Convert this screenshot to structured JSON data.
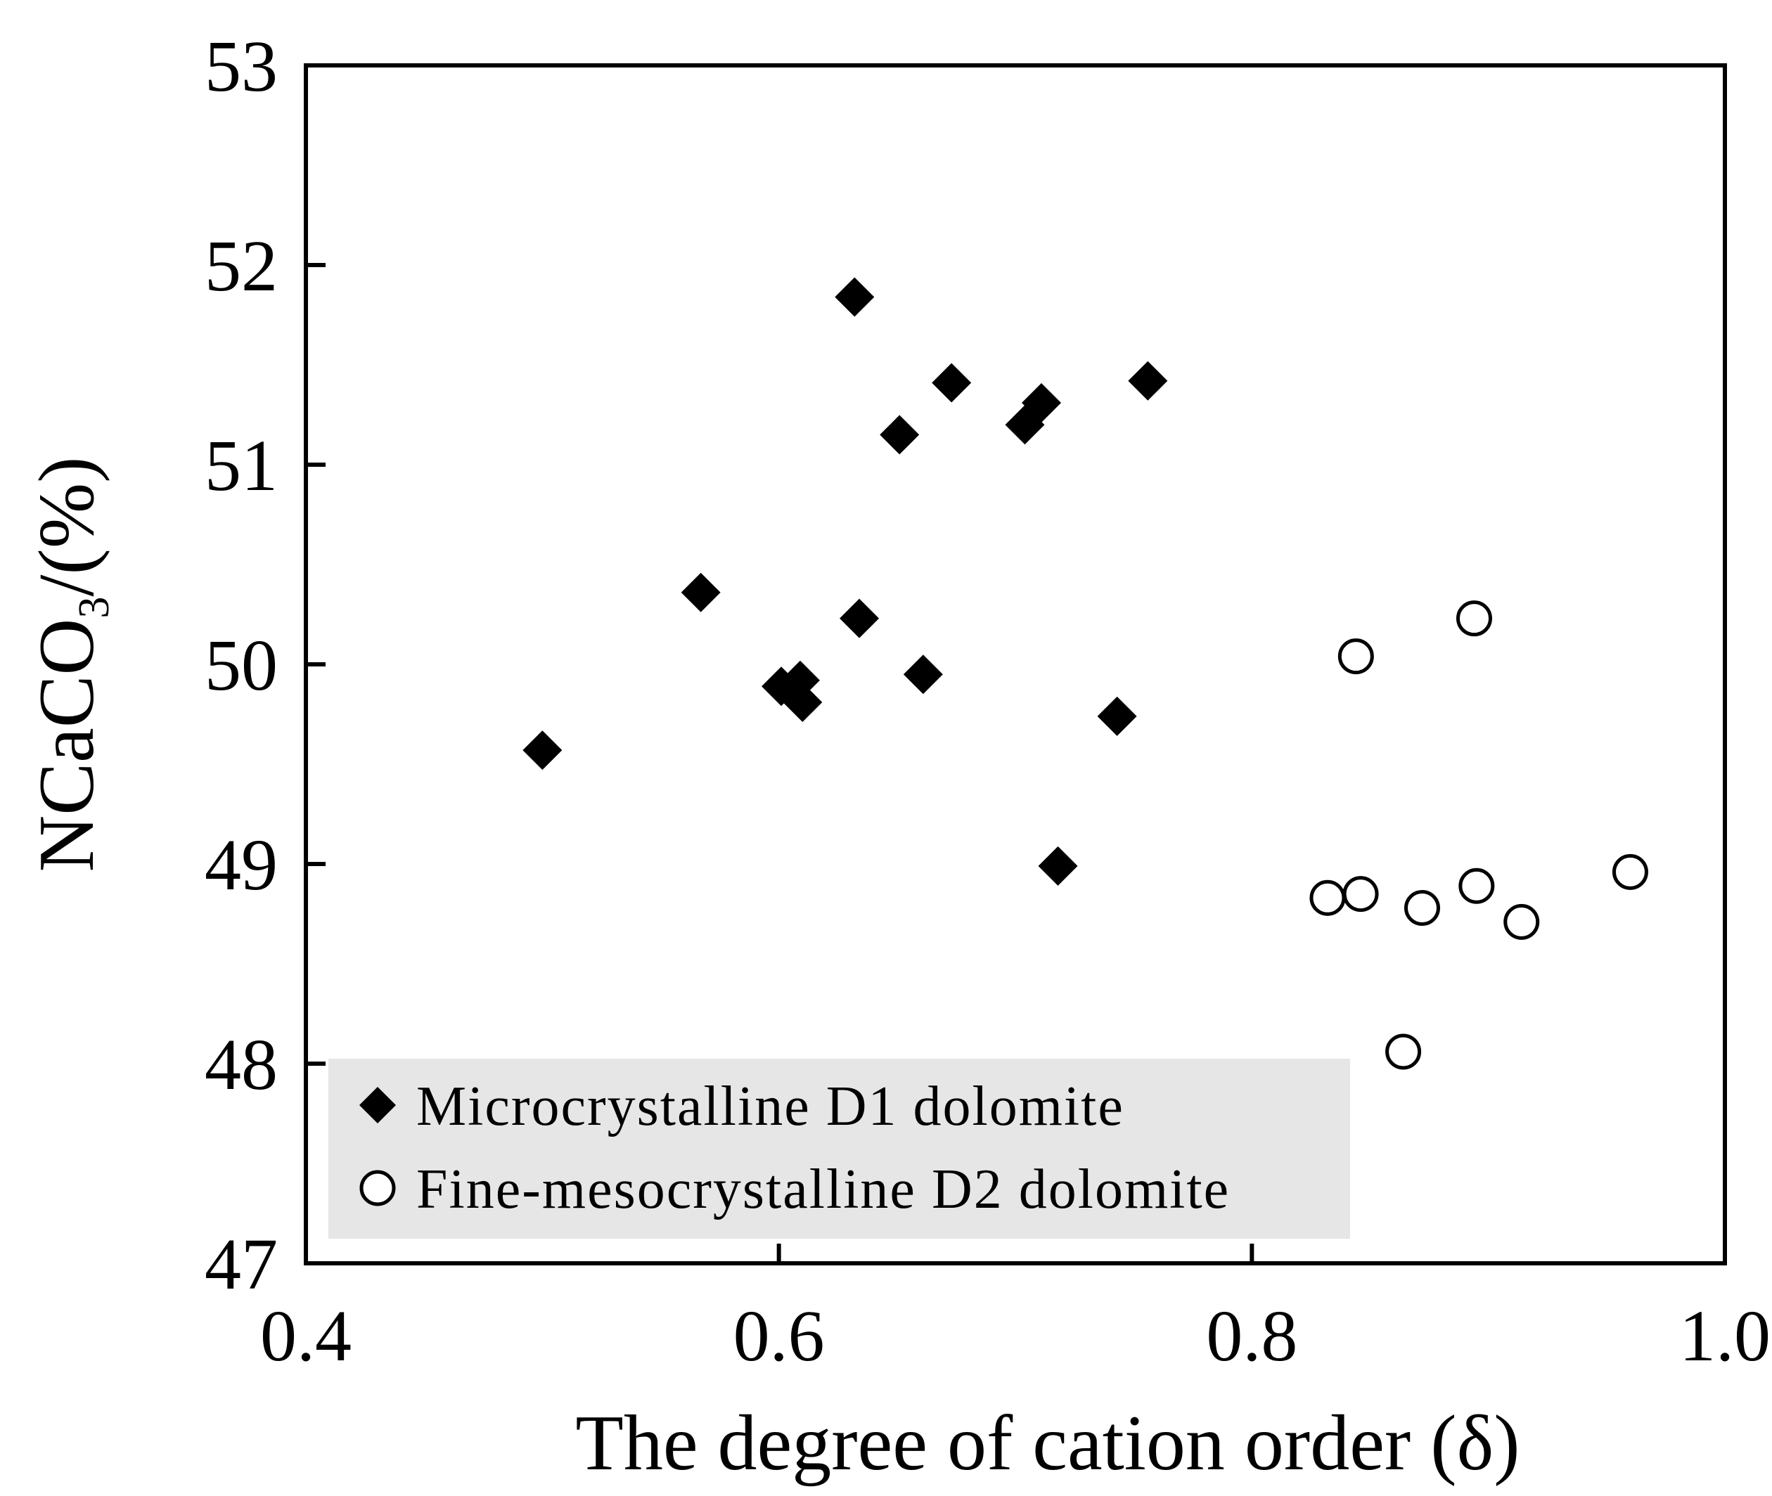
{
  "chart_data": {
    "type": "scatter",
    "xlabel": "The degree of cation order (δ)",
    "ylabel_main": "NCaCO",
    "ylabel_sub": "3",
    "ylabel_tail": "/(%)",
    "xlim": [
      0.4,
      1.0
    ],
    "ylim": [
      47,
      53
    ],
    "xticks": [
      0.4,
      0.6,
      0.8,
      1.0
    ],
    "xtick_labels": [
      "0.4",
      "0.6",
      "0.8",
      "1.0"
    ],
    "yticks": [
      47,
      48,
      49,
      50,
      51,
      52,
      53
    ],
    "ytick_labels": [
      "47",
      "48",
      "49",
      "50",
      "51",
      "52",
      "53"
    ],
    "grid": false,
    "legend_position": "bottom-left",
    "series": [
      {
        "name": "Microcrystalline D1 dolomite",
        "marker": "filled-diamond",
        "color": "#000000",
        "points": [
          [
            0.5,
            49.57
          ],
          [
            0.567,
            50.36
          ],
          [
            0.601,
            49.89
          ],
          [
            0.609,
            49.92
          ],
          [
            0.61,
            49.81
          ],
          [
            0.632,
            51.84
          ],
          [
            0.634,
            50.23
          ],
          [
            0.651,
            51.15
          ],
          [
            0.661,
            49.95
          ],
          [
            0.673,
            51.41
          ],
          [
            0.704,
            51.2
          ],
          [
            0.711,
            51.31
          ],
          [
            0.718,
            48.99
          ],
          [
            0.743,
            49.74
          ],
          [
            0.756,
            51.42
          ]
        ]
      },
      {
        "name": "Fine-mesocrystalline D2 dolomite",
        "marker": "open-circle",
        "color": "#000000",
        "points": [
          [
            0.832,
            48.83
          ],
          [
            0.844,
            50.04
          ],
          [
            0.846,
            48.85
          ],
          [
            0.864,
            48.06
          ],
          [
            0.872,
            48.78
          ],
          [
            0.894,
            50.23
          ],
          [
            0.895,
            48.89
          ],
          [
            0.914,
            48.71
          ],
          [
            0.96,
            48.96
          ]
        ]
      }
    ]
  }
}
